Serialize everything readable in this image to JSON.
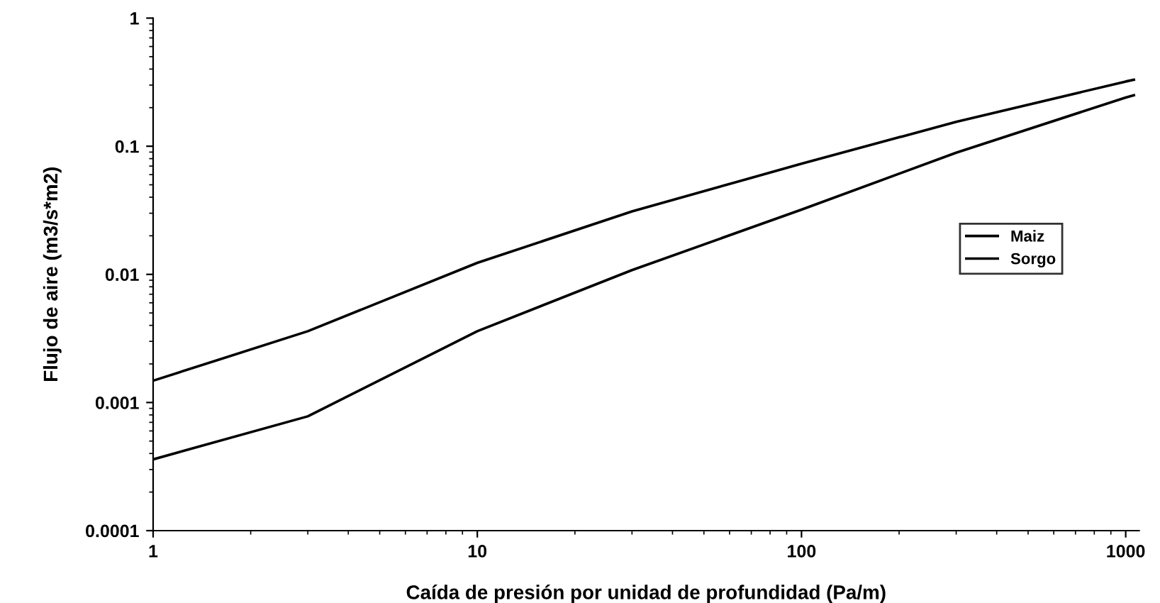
{
  "chart_data": {
    "type": "line",
    "xlabel": "Caída de presión por unidad de profundidad (Pa/m)",
    "ylabel": "Flujo de aire (m3/s*m2)",
    "log": "xy",
    "xlim": [
      1,
      1100
    ],
    "ylim": [
      0.0001,
      1
    ],
    "xticks": [
      1,
      10,
      100,
      1000
    ],
    "yticks": [
      0.0001,
      0.001,
      0.01,
      0.1,
      1
    ],
    "grid": false,
    "legend": "right",
    "marker": "none",
    "line_style": "solid",
    "series": [
      {
        "name": "Maiz",
        "color": "#000000",
        "x": [
          1,
          3,
          10,
          30,
          100,
          300,
          1000,
          1060
        ],
        "values": [
          0.00148,
          0.0036,
          0.0123,
          0.031,
          0.073,
          0.155,
          0.32,
          0.33
        ]
      },
      {
        "name": "Sorgo",
        "color": "#000000",
        "x": [
          1,
          3,
          10,
          30,
          100,
          300,
          1000,
          1060
        ],
        "values": [
          0.00036,
          0.00078,
          0.0036,
          0.0108,
          0.032,
          0.089,
          0.24,
          0.25
        ]
      }
    ]
  }
}
